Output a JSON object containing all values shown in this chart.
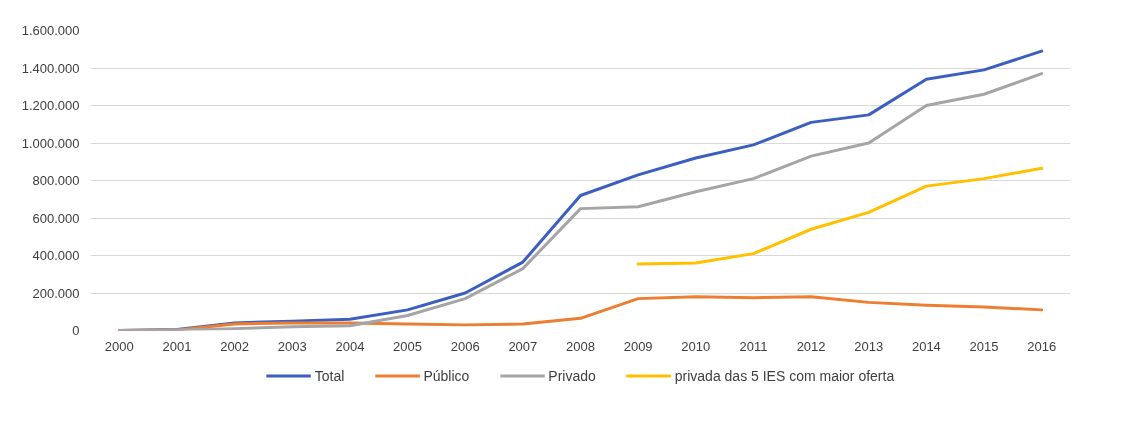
{
  "chart_data": {
    "type": "line",
    "categories": [
      "2000",
      "2001",
      "2002",
      "2003",
      "2004",
      "2005",
      "2006",
      "2007",
      "2008",
      "2009",
      "2010",
      "2011",
      "2012",
      "2013",
      "2014",
      "2015",
      "2016"
    ],
    "series": [
      {
        "name": "Total",
        "color": "#3b5fc0",
        "values": [
          0,
          5000,
          40000,
          50000,
          60000,
          110000,
          200000,
          365000,
          720000,
          830000,
          920000,
          990000,
          1110000,
          1150000,
          1340000,
          1390000,
          1490000
        ]
      },
      {
        "name": "Público",
        "color": "#ed7d31",
        "values": [
          0,
          3000,
          35000,
          40000,
          40000,
          35000,
          30000,
          35000,
          65000,
          170000,
          180000,
          175000,
          180000,
          150000,
          135000,
          125000,
          110000
        ]
      },
      {
        "name": "Privado",
        "color": "#a5a5a5",
        "values": [
          0,
          3000,
          10000,
          20000,
          25000,
          80000,
          170000,
          330000,
          650000,
          660000,
          740000,
          810000,
          930000,
          1000000,
          1200000,
          1260000,
          1370000
        ]
      },
      {
        "name": "privada das 5 IES com maior oferta",
        "color": "#ffc000",
        "values": [
          null,
          null,
          null,
          null,
          null,
          null,
          null,
          null,
          null,
          355000,
          360000,
          410000,
          540000,
          630000,
          770000,
          810000,
          865000
        ]
      }
    ],
    "ylim": [
      0,
      1600000
    ],
    "yticks": [
      {
        "value": 0,
        "label": "0"
      },
      {
        "value": 200000,
        "label": "200.000"
      },
      {
        "value": 400000,
        "label": "400.000"
      },
      {
        "value": 600000,
        "label": "600.000"
      },
      {
        "value": 800000,
        "label": "800.000"
      },
      {
        "value": 1000000,
        "label": "1.000.000"
      },
      {
        "value": 1200000,
        "label": "1.200.000"
      },
      {
        "value": 1400000,
        "label": "1.400.000"
      },
      {
        "value": 1600000,
        "label": "1.600.000"
      }
    ],
    "grid": "y",
    "legend": "bottom",
    "marker": "none",
    "line_style": "solid"
  }
}
